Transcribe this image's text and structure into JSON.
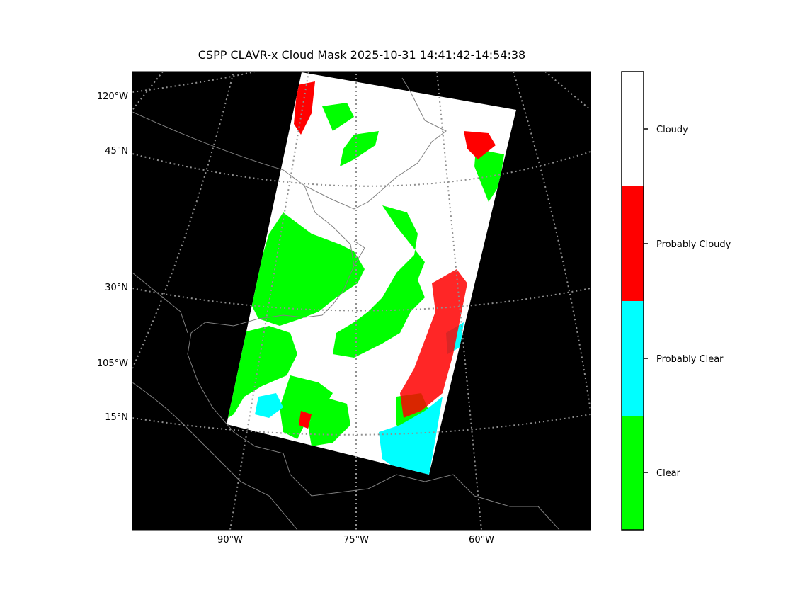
{
  "title": "CSPP CLAVR-x Cloud Mask 2025-10-31 14:41:42-14:54:38",
  "map": {
    "background": "#000000",
    "coastline_color": "#808080",
    "gridline_color": "#909090",
    "left_labels": [
      "120°W",
      "45°N",
      "30°N",
      "105°W",
      "15°N"
    ],
    "bottom_labels": [
      "90°W",
      "75°W",
      "60°W"
    ]
  },
  "legend": {
    "categories": [
      {
        "label": "Clear",
        "color": "#00ff00"
      },
      {
        "label": "Probably Clear",
        "color": "#00ffff"
      },
      {
        "label": "Probably Cloudy",
        "color": "#ff0000"
      },
      {
        "label": "Cloudy",
        "color": "#ffffff"
      }
    ]
  }
}
